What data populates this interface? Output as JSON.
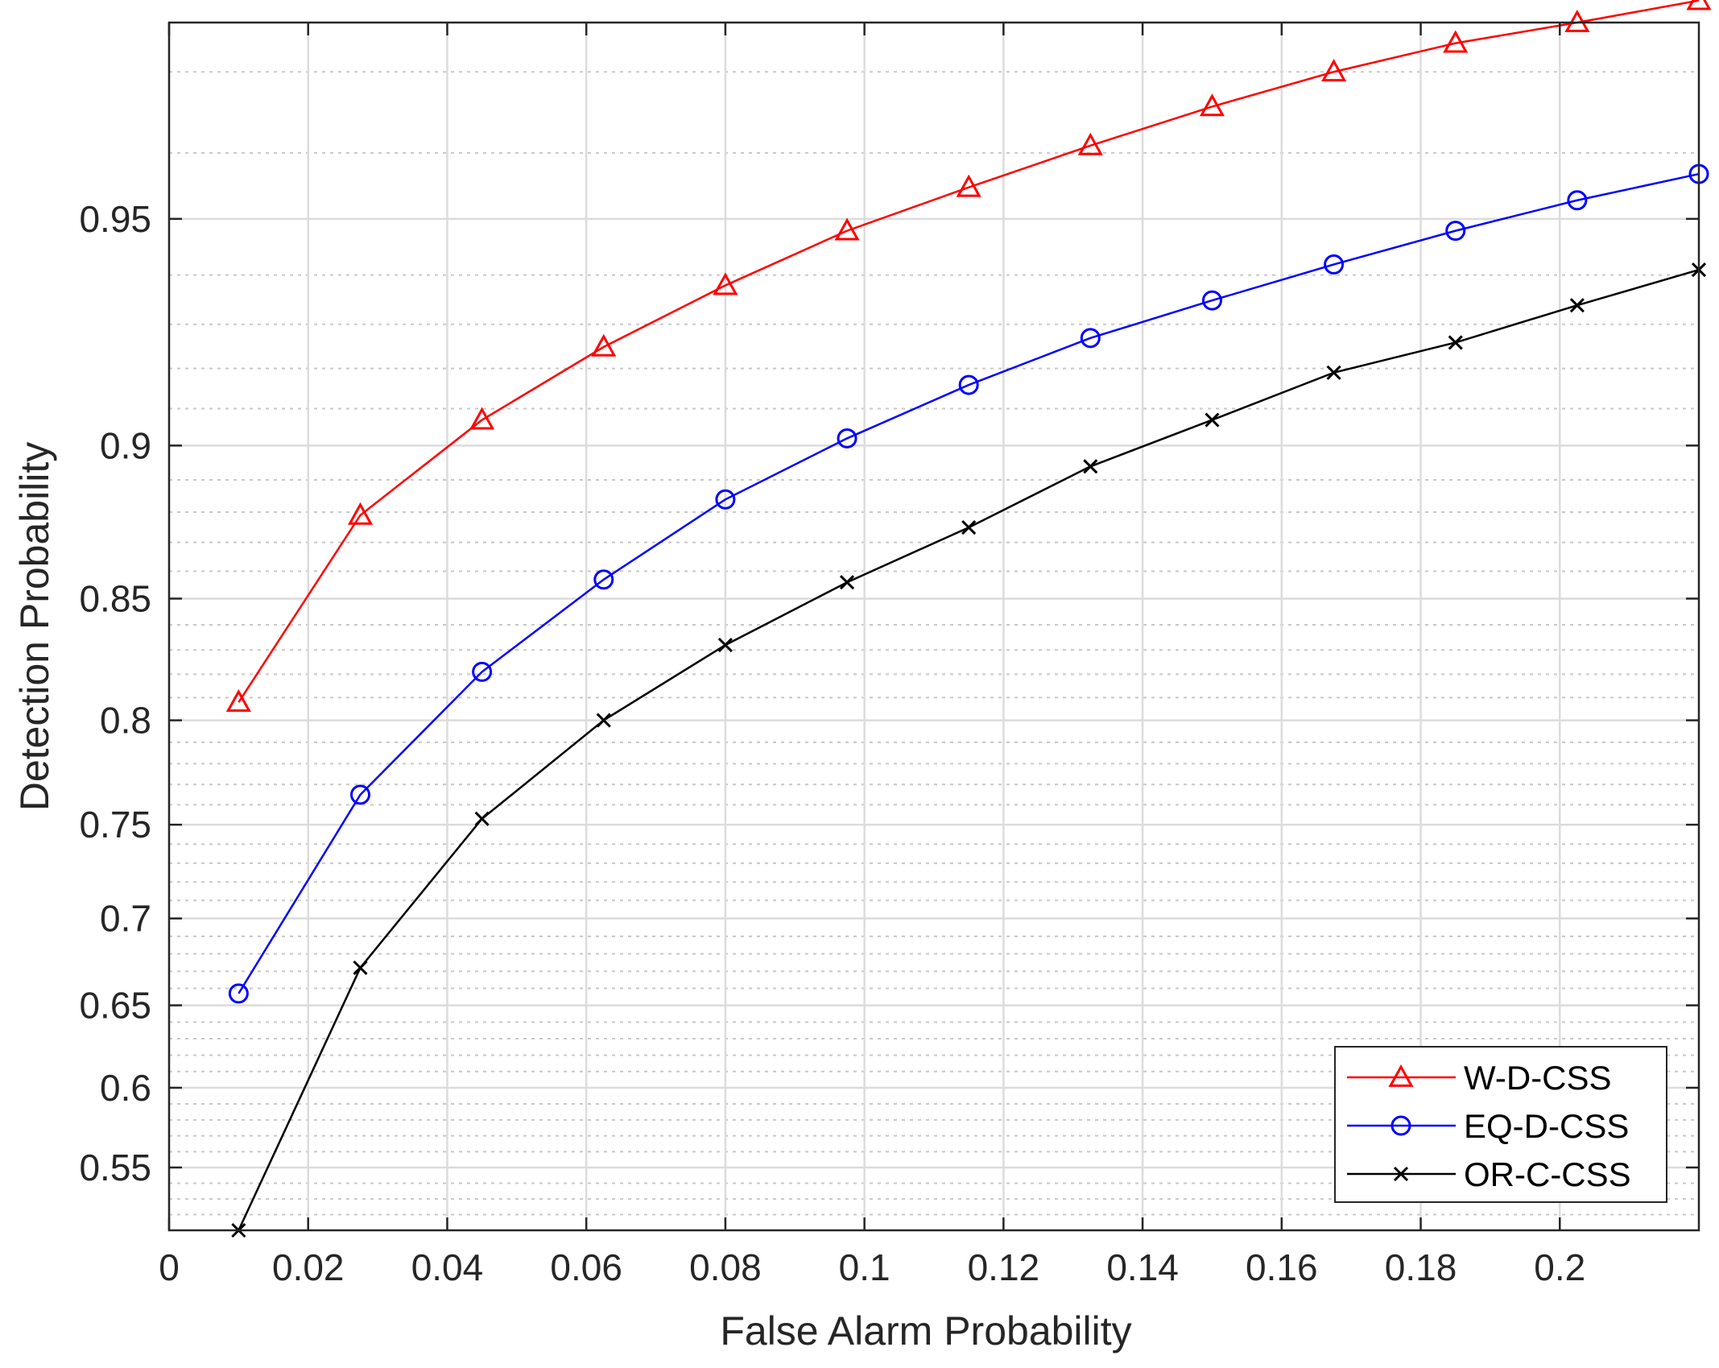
{
  "chart_data": {
    "type": "line",
    "title": "",
    "xlabel": "False Alarm Probability",
    "ylabel": "Detection Probability",
    "xlim": [
      0,
      0.22
    ],
    "ylim": [
      0.51,
      0.975
    ],
    "y_scale": "probit",
    "grid": true,
    "minor_grid": true,
    "legend_position": "bottom-right",
    "xticks": [
      {
        "value": 0,
        "label": "0"
      },
      {
        "value": 0.02,
        "label": "0.02"
      },
      {
        "value": 0.04,
        "label": "0.04"
      },
      {
        "value": 0.06,
        "label": "0.06"
      },
      {
        "value": 0.08,
        "label": "0.08"
      },
      {
        "value": 0.1,
        "label": "0.1"
      },
      {
        "value": 0.12,
        "label": "0.12"
      },
      {
        "value": 0.14,
        "label": "0.14"
      },
      {
        "value": 0.16,
        "label": "0.16"
      },
      {
        "value": 0.18,
        "label": "0.18"
      },
      {
        "value": 0.2,
        "label": "0.2"
      }
    ],
    "yticks": [
      {
        "value": 0.55,
        "label": "0.55"
      },
      {
        "value": 0.6,
        "label": "0.6"
      },
      {
        "value": 0.65,
        "label": "0.65"
      },
      {
        "value": 0.7,
        "label": "0.7"
      },
      {
        "value": 0.75,
        "label": "0.75"
      },
      {
        "value": 0.8,
        "label": "0.8"
      },
      {
        "value": 0.85,
        "label": "0.85"
      },
      {
        "value": 0.9,
        "label": "0.9"
      },
      {
        "value": 0.95,
        "label": "0.95"
      }
    ],
    "x": [
      0.01,
      0.0275,
      0.045,
      0.0625,
      0.08,
      0.0975,
      0.115,
      0.1325,
      0.15,
      0.1675,
      0.185,
      0.2025,
      0.22
    ],
    "series": [
      {
        "name": "W-D-CSS",
        "color": "#ff0000",
        "marker": "triangle",
        "values": [
          0.808,
          0.879,
          0.907,
          0.925,
          0.938,
          0.948,
          0.955,
          0.961,
          0.966,
          0.97,
          0.973,
          0.975,
          0.977
        ]
      },
      {
        "name": "EQ-D-CSS",
        "color": "#0000ff",
        "marker": "circle",
        "values": [
          0.657,
          0.765,
          0.821,
          0.857,
          0.884,
          0.902,
          0.916,
          0.927,
          0.935,
          0.942,
          0.948,
          0.953,
          0.957
        ]
      },
      {
        "name": "OR-C-CSS",
        "color": "#000000",
        "marker": "x",
        "values": [
          0.51,
          0.672,
          0.753,
          0.8,
          0.832,
          0.856,
          0.875,
          0.894,
          0.907,
          0.919,
          0.926,
          0.934,
          0.941
        ]
      }
    ]
  }
}
